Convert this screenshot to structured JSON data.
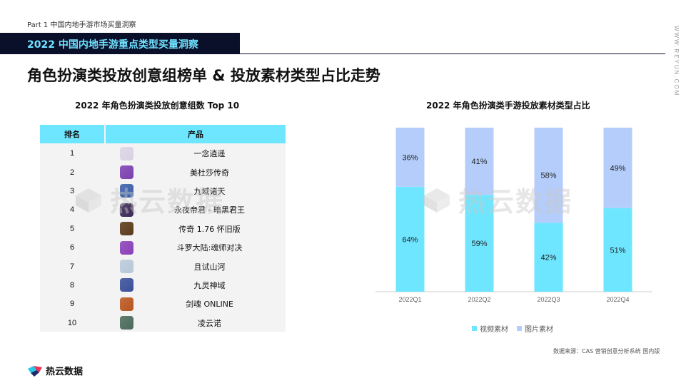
{
  "header": {
    "part_label": "Part 1  中国内地手游市场买量洞察",
    "banner_title": "2022 中国内地手游重点类型买量洞察",
    "side_url": "WWW.REYUN.COM"
  },
  "page_title": "角色扮演类投放创意组榜单 & 投放素材类型占比走势",
  "ranking": {
    "title": "2022 年角色扮演类投放创意组数 Top 10",
    "columns": [
      "排名",
      "产品"
    ],
    "rows": [
      {
        "rank": "1",
        "name": "一念逍遥",
        "icon_color": "#d9d2e4",
        "icon": "game-icon"
      },
      {
        "rank": "2",
        "name": "美杜莎传奇",
        "icon_color": "#7b3fb0",
        "icon": "game-icon"
      },
      {
        "rank": "3",
        "name": "九域诸天",
        "icon_color": "#3a5fa8",
        "icon": "game-icon"
      },
      {
        "rank": "4",
        "name": "永夜帝君 - 暗黑君王",
        "icon_color": "#3b2a55",
        "icon": "game-icon"
      },
      {
        "rank": "5",
        "name": "传奇 1.76 怀旧版",
        "icon_color": "#5a3a1a",
        "icon": "game-icon"
      },
      {
        "rank": "6",
        "name": "斗罗大陆:魂师对决",
        "icon_color": "#8a3fb8",
        "icon": "game-icon"
      },
      {
        "rank": "7",
        "name": "且试山河",
        "icon_color": "#b8c8d8",
        "icon": "game-icon"
      },
      {
        "rank": "8",
        "name": "九灵神域",
        "icon_color": "#3a4f9a",
        "icon": "game-icon"
      },
      {
        "rank": "9",
        "name": "剑魂 ONLINE",
        "icon_color": "#b8561e",
        "icon": "game-icon"
      },
      {
        "rank": "10",
        "name": "凌云诺",
        "icon_color": "#4a6a5a",
        "icon": "game-icon"
      }
    ]
  },
  "chart_data": {
    "type": "bar",
    "stacked": true,
    "normalized": true,
    "title": "2022 年角色扮演类手游投放素材类型占比",
    "categories": [
      "2022Q1",
      "2022Q2",
      "2022Q3",
      "2022Q4"
    ],
    "series": [
      {
        "name": "视频素材",
        "color": "#6fe6ff",
        "values": [
          64,
          59,
          42,
          51
        ],
        "labels": [
          "64%",
          "59%",
          "42%",
          "51%"
        ]
      },
      {
        "name": "图片素材",
        "color": "#b4cdfb",
        "values": [
          36,
          41,
          58,
          49
        ],
        "labels": [
          "36%",
          "41%",
          "58%",
          "49%"
        ]
      }
    ],
    "ylim": [
      0,
      100
    ],
    "grid": false,
    "legend": "bottom"
  },
  "watermark_text": "热云数据",
  "source": "数据来源：CAS 营销创意分析系统 国内版",
  "footer": {
    "logo_text": "热云数据",
    "logo_icon": "reyun-logo-icon"
  }
}
